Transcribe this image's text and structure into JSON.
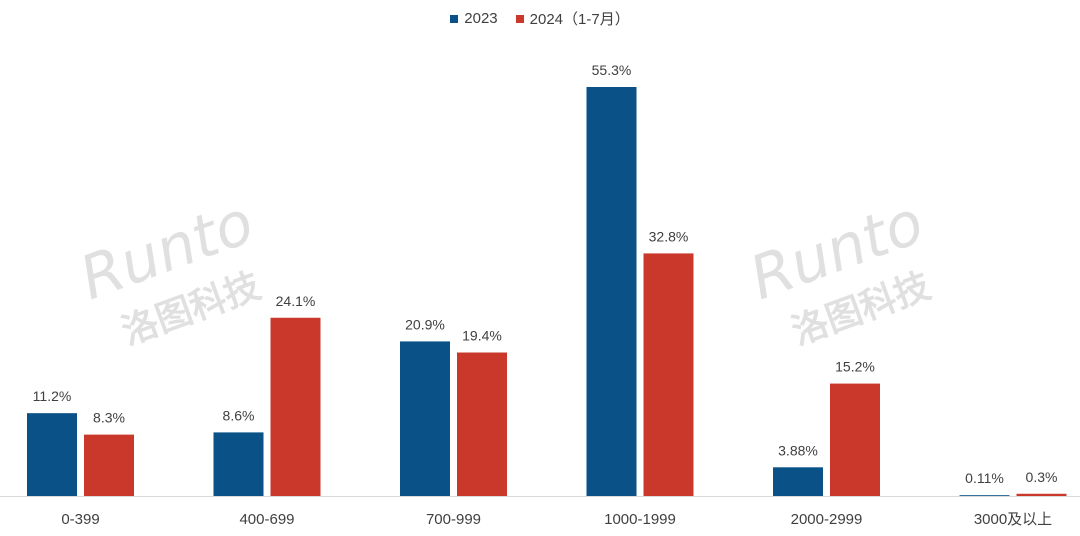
{
  "colors": {
    "series_2023": "#0a5187",
    "series_2024": "#c9382a",
    "axis": "#d9d9d9",
    "label_text": "#404040"
  },
  "watermark": {
    "brand": "Runto",
    "cn": "洛图科技"
  },
  "chart_data": {
    "type": "bar",
    "categories": [
      "0-399",
      "400-699",
      "700-999",
      "1000-1999",
      "2000-2999",
      "3000及以上"
    ],
    "series": [
      {
        "name": "2023",
        "values": [
          11.2,
          8.6,
          20.9,
          55.3,
          3.88,
          0.11
        ],
        "labels": [
          "11.2%",
          "8.6%",
          "20.9%",
          "55.3%",
          "3.88%",
          "0.11%"
        ]
      },
      {
        "name": "2024（1-7月）",
        "values": [
          8.3,
          24.1,
          19.4,
          32.8,
          15.2,
          0.3
        ],
        "labels": [
          "8.3%",
          "24.1%",
          "19.4%",
          "32.8%",
          "15.2%",
          "0.3%"
        ]
      }
    ],
    "ylim": [
      0,
      55.3
    ],
    "grid": false,
    "legend_position": "top-center"
  }
}
